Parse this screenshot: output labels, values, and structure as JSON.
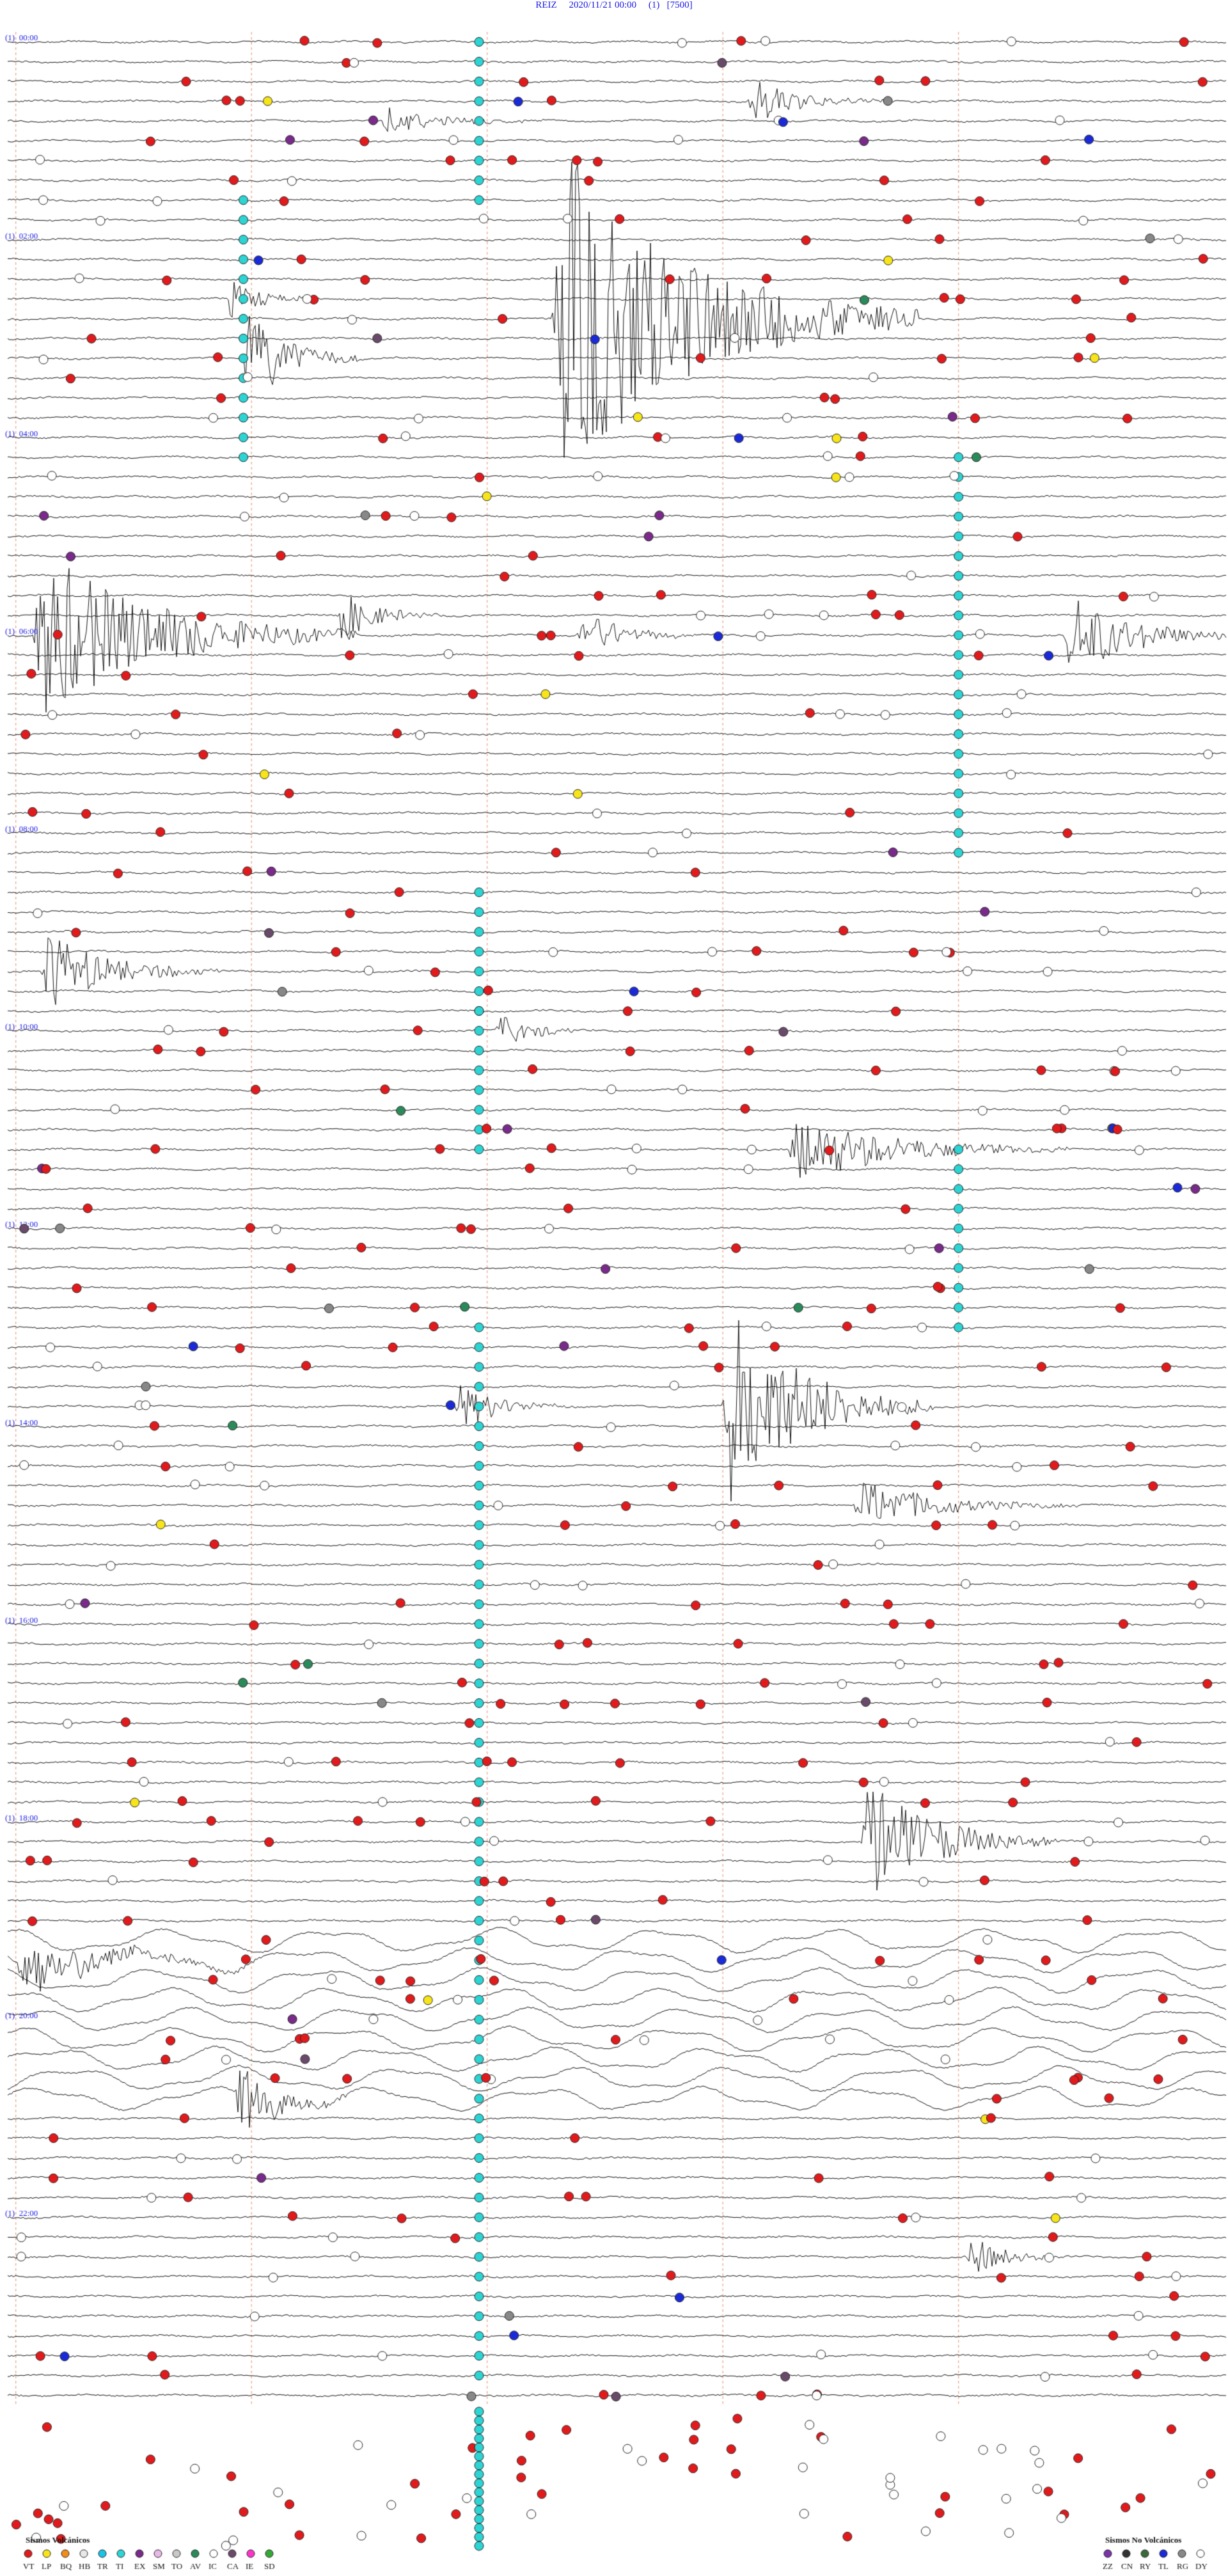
{
  "header": {
    "station": "REIZ",
    "datetime": "2020/11/21 00:00",
    "channel": "(1)",
    "scale": "[7500]"
  },
  "colors": {
    "trace": "#111111",
    "hour_label": "#1a1ae6",
    "dashed_marker": "#e8a080",
    "VT": "#e31a1c",
    "LP": "#f7e51a",
    "BQ": "#f28c1a",
    "HB": "#e8e8e8",
    "TR": "#19c4e6",
    "TI": "#2dd4d4",
    "EX": "#7a2a8a",
    "SM": "#e8b8e8",
    "TO": "#c8c8c8",
    "AV": "#2a8a5a",
    "IC": "#ffffff",
    "CA": "#6a4a6a",
    "IE": "#ff33cc",
    "SD": "#33aa33",
    "ZZ": "#7a33aa",
    "CN": "#333333",
    "RY": "#3a6a3a",
    "TL": "#1a2ad8",
    "RG": "#888888",
    "DY": "#ffffff"
  },
  "chart_data": {
    "type": "helicorder",
    "title": "REIZ   2020/11/21 00:00   (1)   [7500]",
    "rows": 96,
    "minutes_per_row": 15,
    "hour_labels": [
      "00:00",
      "02:00",
      "04:00",
      "06:00",
      "08:00",
      "10:00",
      "12:00",
      "14:00",
      "16:00",
      "18:00",
      "20:00",
      "22:00"
    ],
    "events": [
      {
        "row": 3,
        "minute": 9.1,
        "amp": 0.8,
        "dur": 1.8
      },
      {
        "row": 4,
        "minute": 4.6,
        "amp": 0.5,
        "dur": 2.0
      },
      {
        "row": 13,
        "minute": 2.7,
        "amp": 0.7,
        "dur": 1.1
      },
      {
        "row": 14,
        "minute": 6.7,
        "amp": 6.0,
        "dur": 4.5
      },
      {
        "row": 16,
        "minute": 2.9,
        "amp": 1.7,
        "dur": 1.5
      },
      {
        "row": 29,
        "minute": 4.0,
        "amp": 1.0,
        "dur": 1.3
      },
      {
        "row": 30,
        "minute": 0.3,
        "amp": 3.0,
        "dur": 4.0
      },
      {
        "row": 30,
        "minute": 7.0,
        "amp": 0.9,
        "dur": 1.5
      },
      {
        "row": 30,
        "minute": 13.0,
        "amp": 1.5,
        "dur": 2.2
      },
      {
        "row": 47,
        "minute": 0.4,
        "amp": 1.4,
        "dur": 2.2
      },
      {
        "row": 50,
        "minute": 6.0,
        "amp": 0.6,
        "dur": 1.3
      },
      {
        "row": 56,
        "minute": 9.6,
        "amp": 1.2,
        "dur": 3.5
      },
      {
        "row": 69,
        "minute": 5.5,
        "amp": 0.8,
        "dur": 1.5
      },
      {
        "row": 69,
        "minute": 8.8,
        "amp": 3.5,
        "dur": 2.6
      },
      {
        "row": 74,
        "minute": 10.4,
        "amp": 0.9,
        "dur": 2.8
      },
      {
        "row": 91,
        "minute": 10.5,
        "amp": 2.2,
        "dur": 2.4
      },
      {
        "row": 104,
        "minute": 2.8,
        "amp": 1.3,
        "dur": 1.4
      },
      {
        "row": 112,
        "minute": 11.8,
        "amp": 0.8,
        "dur": 1.2
      },
      {
        "row": 97,
        "minute": 0.1,
        "amp": 1.0,
        "dur": 3.0
      }
    ],
    "noisy_rows": [
      96,
      97,
      98,
      99,
      100,
      101,
      102,
      103,
      104
    ],
    "cyan_columns": [
      {
        "minute": 2.9,
        "rows": [
          8,
          21
        ]
      },
      {
        "minute": 5.8,
        "rows": [
          0,
          8
        ]
      },
      {
        "minute": 5.8,
        "rows": [
          43,
          49
        ]
      },
      {
        "minute": 5.8,
        "rows": [
          49,
          56
        ]
      },
      {
        "minute": 11.7,
        "rows": [
          21,
          41
        ]
      },
      {
        "minute": 11.7,
        "rows": [
          56,
          65
        ]
      },
      {
        "minute": 5.8,
        "rows": [
          65,
          118
        ]
      }
    ],
    "dashed_minutes": [
      0.1,
      3.0,
      5.9,
      8.8,
      11.7
    ],
    "marker_density": {
      "VT": 0.55,
      "IC": 0.32,
      "other": 0.06
    }
  },
  "legend": {
    "volcanic_title": "Sismos Volcánicos",
    "volcanic": [
      "VT",
      "LP",
      "BQ",
      "HB",
      "TR",
      "TI",
      "EX",
      "SM",
      "TO",
      "AV",
      "IC",
      "CA",
      "IE",
      "SD"
    ],
    "nonvolcanic_title": "Sismos No Volcánicos",
    "nonvolcanic": [
      "ZZ",
      "CN",
      "RY",
      "TL",
      "RG",
      "DY"
    ]
  }
}
